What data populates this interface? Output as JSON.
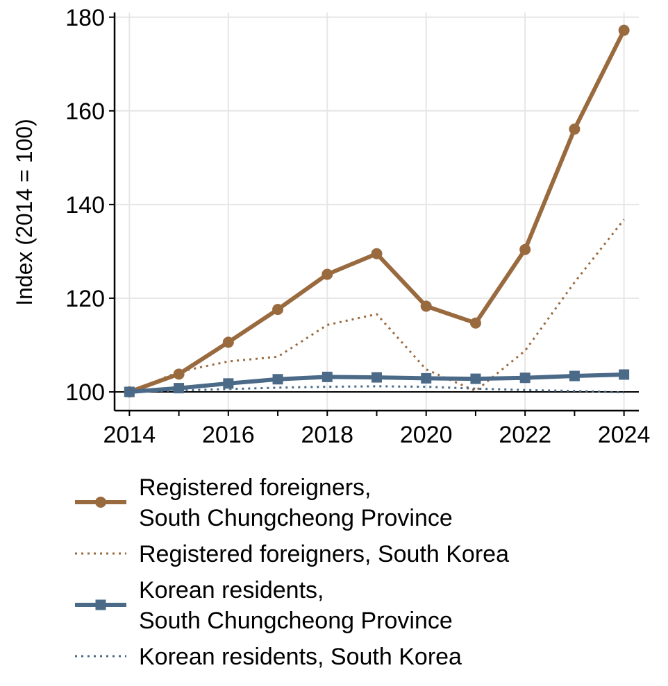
{
  "chart_data": {
    "type": "line",
    "ylabel": "Index (2014 = 100)",
    "xlabel": "",
    "xlim": [
      2013.7,
      2024.3
    ],
    "ylim": [
      96,
      181
    ],
    "xticks": [
      2014,
      2016,
      2018,
      2020,
      2022,
      2024
    ],
    "yticks": [
      100,
      120,
      140,
      160,
      180
    ],
    "grid": true,
    "reference_line": 100,
    "legend_position": "bottom",
    "x": [
      2014,
      2015,
      2016,
      2017,
      2018,
      2019,
      2020,
      2021,
      2022,
      2023,
      2024
    ],
    "series": [
      {
        "name_lines": [
          "Registered foreigners,",
          "South Chungcheong Province"
        ],
        "color": "#9a6a3f",
        "style": "solid",
        "marker": "circle",
        "values": [
          100,
          103.8,
          110.6,
          117.6,
          125.1,
          129.5,
          118.3,
          114.7,
          130.4,
          156.1,
          177.2
        ]
      },
      {
        "name_lines": [
          "Registered foreigners, South Korea"
        ],
        "color": "#9a6a3f",
        "style": "dotted",
        "marker": "none",
        "values": [
          100,
          104.3,
          106.5,
          107.5,
          114.3,
          116.6,
          104.8,
          100.2,
          108.8,
          123.4,
          136.8
        ]
      },
      {
        "name_lines": [
          "Korean residents,",
          "South Chungcheong Province"
        ],
        "color": "#4a6a88",
        "style": "solid",
        "marker": "square",
        "values": [
          100,
          100.8,
          101.8,
          102.7,
          103.2,
          103.1,
          102.9,
          102.8,
          103.0,
          103.4,
          103.7
        ]
      },
      {
        "name_lines": [
          "Korean residents, South Korea"
        ],
        "color": "#4a6a88",
        "style": "dotted",
        "marker": "none",
        "values": [
          100,
          100.3,
          100.6,
          100.9,
          101.1,
          101.2,
          101.1,
          100.7,
          100.4,
          100.2,
          99.9
        ]
      }
    ]
  }
}
